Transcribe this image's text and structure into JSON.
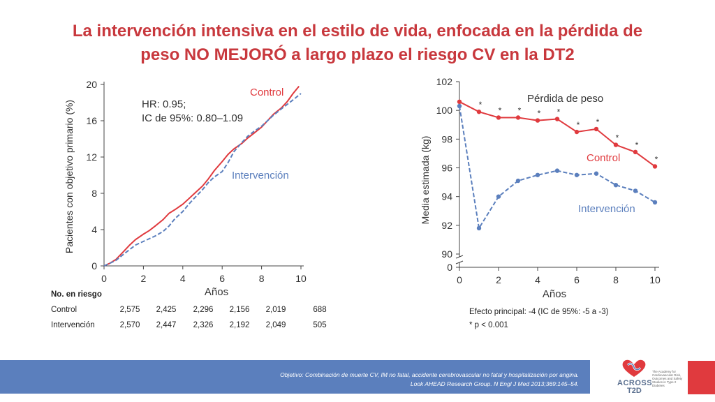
{
  "title": {
    "line1": "La intervención intensiva en el estilo de vida, enfocada en la pérdida de",
    "line2": "peso NO MEJORÓ a largo plazo el riesgo CV en la DT2"
  },
  "colors": {
    "control": "#e03a3e",
    "intervention": "#5b7fbd",
    "title": "#c8383d",
    "footer": "#5b7fbd"
  },
  "chart_data": [
    {
      "type": "line",
      "ylabel": "Pacientes con objetivo primario (%)",
      "xlabel": "Años",
      "xlim": [
        0,
        10
      ],
      "ylim": [
        0,
        20
      ],
      "xticks": [
        "0",
        "2",
        "4",
        "6",
        "8",
        "10"
      ],
      "yticks": [
        "0",
        "4",
        "8",
        "12",
        "16",
        "20"
      ],
      "annotation": [
        "HR: 0.95;",
        "IC de 95%: 0.80–1.09"
      ],
      "series": [
        {
          "name": "Control",
          "style": "solid",
          "x": [
            0,
            0.3,
            0.6,
            1,
            1.3,
            1.6,
            2,
            2.3,
            2.6,
            3,
            3.3,
            3.6,
            4,
            4.3,
            4.6,
            5,
            5.3,
            5.6,
            6,
            6.3,
            6.6,
            7,
            7.3,
            7.6,
            8,
            8.3,
            8.6,
            9,
            9.3,
            9.6,
            9.9
          ],
          "y": [
            0,
            0.3,
            0.7,
            1.6,
            2.3,
            2.9,
            3.5,
            3.9,
            4.4,
            5.1,
            5.8,
            6.2,
            6.8,
            7.4,
            8.0,
            8.8,
            9.6,
            10.5,
            11.5,
            12.3,
            12.9,
            13.5,
            14.1,
            14.6,
            15.3,
            16.0,
            16.7,
            17.4,
            18.1,
            19.0,
            19.8
          ]
        },
        {
          "name": "Intervención",
          "style": "dashed",
          "x": [
            0,
            0.3,
            0.6,
            1,
            1.3,
            1.6,
            2,
            2.3,
            2.6,
            3,
            3.3,
            3.6,
            4,
            4.3,
            4.6,
            5,
            5.3,
            5.6,
            6,
            6.3,
            6.6,
            7,
            7.3,
            7.6,
            8,
            8.3,
            8.6,
            9,
            9.3,
            9.6,
            10
          ],
          "y": [
            0,
            0.3,
            0.6,
            1.3,
            1.8,
            2.3,
            2.7,
            3.0,
            3.3,
            3.8,
            4.4,
            5.2,
            6.0,
            6.8,
            7.5,
            8.4,
            9.2,
            9.8,
            10.4,
            11.4,
            12.6,
            13.6,
            14.3,
            14.8,
            15.4,
            16.0,
            16.6,
            17.3,
            17.8,
            18.3,
            19.0
          ]
        }
      ],
      "risk_table": {
        "header": "No. en riesgo",
        "rows": [
          {
            "label": "Control",
            "values": [
              "2,575",
              "2,425",
              "2,296",
              "2,156",
              "2,019",
              "688"
            ]
          },
          {
            "label": "Intervención",
            "values": [
              "2,570",
              "2,447",
              "2,326",
              "2,192",
              "2,049",
              "505"
            ]
          }
        ]
      }
    },
    {
      "type": "line",
      "ylabel": "Media estimada (kg)",
      "xlabel": "Años",
      "xlim": [
        0,
        10
      ],
      "ylim": [
        90,
        102
      ],
      "axis_break": true,
      "xticks": [
        "0",
        "2",
        "4",
        "6",
        "8",
        "10"
      ],
      "yticks": [
        "90",
        "92",
        "94",
        "96",
        "98",
        "100",
        "102"
      ],
      "zero_tick": "0",
      "inner_title": "Pérdida de peso",
      "significance_marker": "*",
      "series": [
        {
          "name": "Control",
          "style": "solid",
          "marker": "dot",
          "x": [
            0,
            1,
            2,
            3,
            4,
            5,
            6,
            7,
            8,
            9,
            10
          ],
          "y": [
            100.6,
            99.9,
            99.5,
            99.5,
            99.3,
            99.4,
            98.5,
            98.7,
            97.6,
            97.1,
            96.1
          ],
          "significant": [
            false,
            true,
            true,
            true,
            true,
            true,
            true,
            true,
            true,
            true,
            true
          ]
        },
        {
          "name": "Intervención",
          "style": "dashed",
          "marker": "dot",
          "x": [
            0,
            1,
            2,
            3,
            4,
            5,
            6,
            7,
            8,
            9,
            10
          ],
          "y": [
            100.3,
            91.8,
            94.0,
            95.1,
            95.5,
            95.8,
            95.5,
            95.6,
            94.8,
            94.4,
            93.6
          ]
        }
      ],
      "notes": [
        "Efecto principal: -4 (IC de 95%: -5 a -3)",
        "* p < 0.001"
      ]
    }
  ],
  "footer": {
    "line1_italic": "Objetivo: Combinación de muerte CV, IM no fatal, accidente cerebrovascular no fatal y hospitalización por angina.",
    "line2": "Look AHEAD Research Group. N Engl J Med 2013;369:145–54."
  },
  "logo": {
    "text1": "ACROSS",
    "text2": "T2D",
    "tagline": "The Academy for Cardiovascular Risk, Outcomes and Safety Studies in Type 2 Diabetes"
  }
}
